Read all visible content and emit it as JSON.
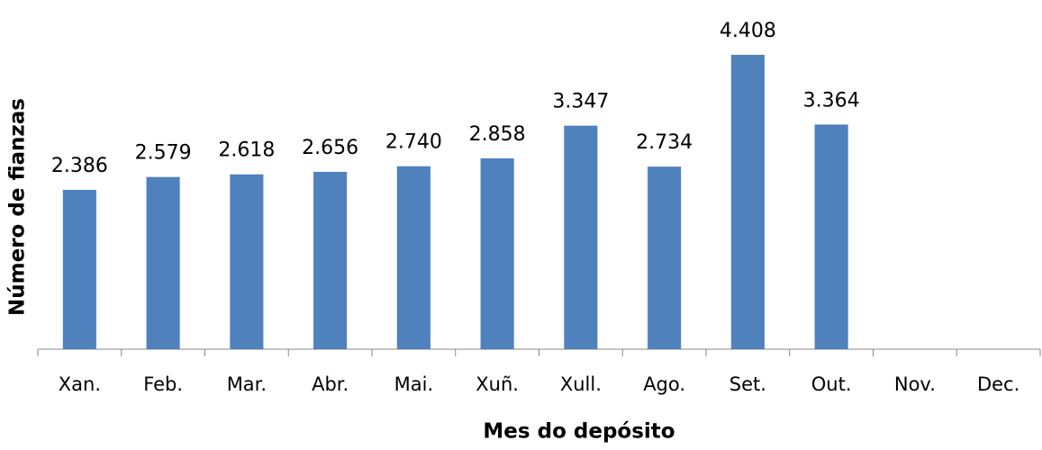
{
  "chart_data": {
    "type": "bar",
    "x_label": "Mes do depósito",
    "y_label": "Número de fianzas",
    "categories": [
      "Xan.",
      "Feb.",
      "Mar.",
      "Abr.",
      "Mai.",
      "Xuñ.",
      "Xull.",
      "Ago.",
      "Set.",
      "Out.",
      "Nov.",
      "Dec."
    ],
    "values": [
      2386,
      2579,
      2618,
      2656,
      2740,
      2858,
      3347,
      2734,
      4408,
      3364,
      null,
      null
    ],
    "value_labels": [
      "2.386",
      "2.579",
      "2.618",
      "2.656",
      "2.740",
      "2.858",
      "3.347",
      "2.734",
      "4.408",
      "3.364",
      null,
      null
    ],
    "color": "#4f81bd",
    "ylim": [
      0,
      5000
    ]
  }
}
